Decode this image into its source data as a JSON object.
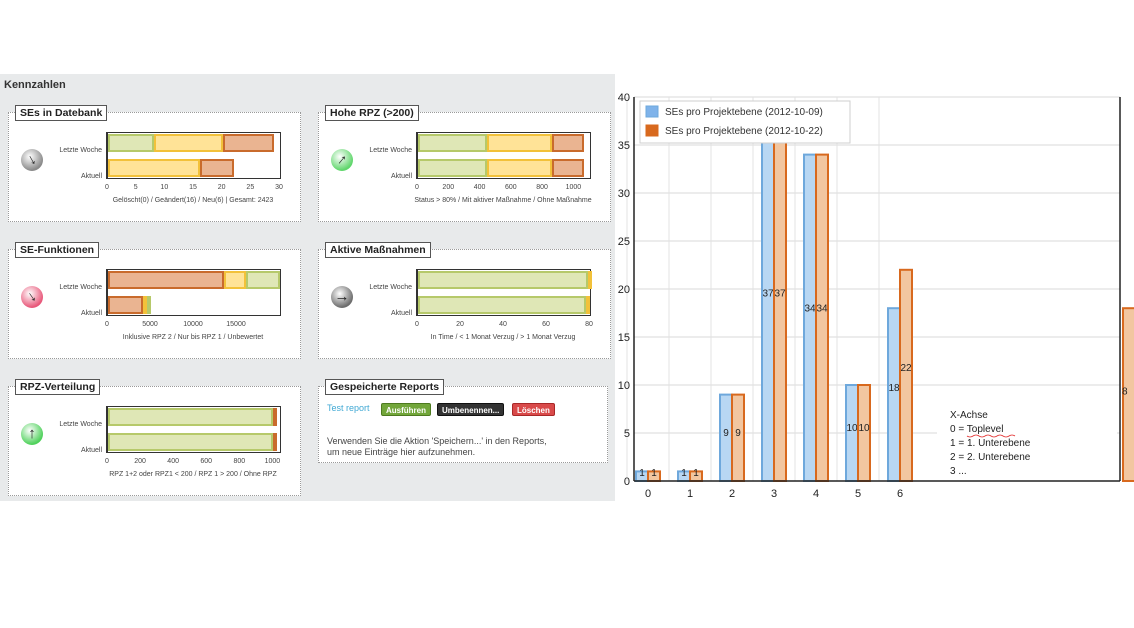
{
  "dashboard": {
    "title": "Kennzahlen",
    "panels": [
      {
        "title": "SEs in Datebank",
        "trend": "trend-down-icon",
        "row_labels": [
          "Letzte Woche",
          "Aktuell"
        ],
        "rows": [
          [
            {
              "v": 8,
              "c": "green"
            },
            {
              "v": 12,
              "c": "yellow"
            },
            {
              "v": 9,
              "c": "orange"
            }
          ],
          [
            {
              "v": 16,
              "c": "yellow"
            },
            {
              "v": 6,
              "c": "orange"
            }
          ]
        ],
        "axis_max": 30,
        "ticks": [
          "0",
          "5",
          "10",
          "15",
          "20",
          "25",
          "30"
        ],
        "caption": "Gelöscht(0) / Geändert(16) / Neu(6) | Gesamt: 2423"
      },
      {
        "title": "Hohe RPZ (>200)",
        "trend": "trend-up-icon",
        "row_labels": [
          "Letzte Woche",
          "Aktuell"
        ],
        "rows": [
          [
            {
              "v": 440,
              "c": "green"
            },
            {
              "v": 420,
              "c": "yellow"
            },
            {
              "v": 200,
              "c": "orange"
            }
          ],
          [
            {
              "v": 440,
              "c": "green"
            },
            {
              "v": 420,
              "c": "yellow"
            },
            {
              "v": 200,
              "c": "orange"
            }
          ]
        ],
        "axis_max": 1100,
        "ticks": [
          "0",
          "200",
          "400",
          "600",
          "800",
          "1000"
        ],
        "caption": "Status > 80% / Mit aktiver Maßnahme / Ohne Maßnahme"
      },
      {
        "title": "SE-Funktionen",
        "trend": "trend-down-red-icon",
        "row_labels": [
          "Letzte Woche",
          "Aktuell"
        ],
        "rows": [
          [
            {
              "v": 13500,
              "c": "orange"
            },
            {
              "v": 2500,
              "c": "yellow"
            },
            {
              "v": 4000,
              "c": "green"
            }
          ],
          [
            {
              "v": 4100,
              "c": "orange"
            },
            {
              "v": 400,
              "c": "yellow"
            },
            {
              "v": 400,
              "c": "green"
            }
          ]
        ],
        "axis_max": 20000,
        "ticks": [
          "0",
          "5000",
          "10000",
          "15000"
        ],
        "caption": "Inklusive RPZ 2 / Nur bis RPZ 1 / Unbewertet"
      },
      {
        "title": "Aktive Maßnahmen",
        "trend": "trend-right-icon",
        "row_labels": [
          "Letzte Woche",
          "Aktuell"
        ],
        "rows": [
          [
            {
              "v": 79,
              "c": "green"
            },
            {
              "v": 0.6,
              "c": "yellow"
            }
          ],
          [
            {
              "v": 78,
              "c": "green"
            },
            {
              "v": 1,
              "c": "yellow"
            }
          ]
        ],
        "axis_max": 80,
        "ticks": [
          "0",
          "20",
          "40",
          "60",
          "80"
        ],
        "caption": "In Time / < 1 Monat Verzug / > 1 Monat Verzug"
      },
      {
        "title": "RPZ-Verteilung",
        "trend": "trend-up-green-icon",
        "row_labels": [
          "Letzte Woche",
          "Aktuell"
        ],
        "rows": [
          [
            {
              "v": 1000,
              "c": "green"
            },
            {
              "v": 10,
              "c": "orange"
            }
          ],
          [
            {
              "v": 1000,
              "c": "green"
            },
            {
              "v": 10,
              "c": "orange"
            }
          ]
        ],
        "axis_max": 1040,
        "ticks": [
          "0",
          "200",
          "400",
          "600",
          "800",
          "1000"
        ],
        "caption": "RPZ 1+2 oder RPZ1 < 200 / RPZ 1 > 200 / Ohne RPZ"
      }
    ],
    "reports": {
      "title": "Gespeicherte Reports",
      "link": "Test report",
      "run_label": "Ausführen",
      "rename_label": "Umbenennen...",
      "delete_label": "Löschen",
      "hint_line1": "Verwenden Sie die Aktion 'Speichern...' in den Reports,",
      "hint_line2": "um neue Einträge hier aufzunehmen."
    }
  },
  "chart_data": {
    "type": "bar",
    "title": "",
    "xlabel": "",
    "ylabel": "",
    "categories": [
      "0",
      "1",
      "2",
      "3",
      "4",
      "5",
      "6"
    ],
    "series": [
      {
        "name": "SEs pro Projektebene (2012-10-09)",
        "values": [
          1,
          1,
          9,
          37,
          34,
          10,
          18
        ],
        "color": "#b8d7f3",
        "stroke": "#6ea8dc"
      },
      {
        "name": "SEs pro Projektebene (2012-10-22)",
        "values": [
          1,
          1,
          9,
          37,
          34,
          10,
          22
        ],
        "color": "#f2c6a0",
        "stroke": "#d8691e"
      }
    ],
    "ylim": [
      0,
      40
    ],
    "yticks": [
      0,
      5,
      10,
      15,
      20,
      25,
      30,
      35,
      40
    ],
    "grid": true,
    "legend_position": "top-left",
    "annotation": [
      "X-Achse",
      "0 = Toplevel",
      "1 = 1. Unterebene",
      "2 = 2. Unterebene",
      "3 ..."
    ],
    "clipped_label": "8"
  }
}
